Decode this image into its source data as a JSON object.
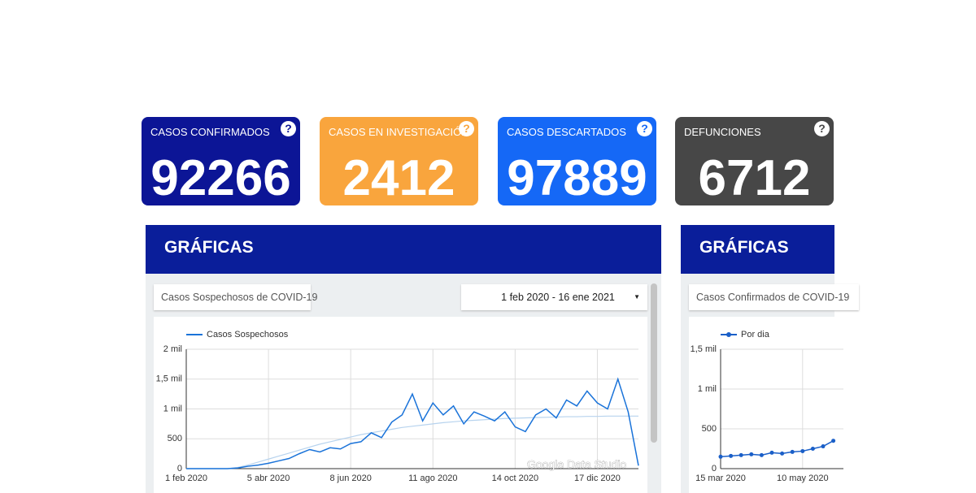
{
  "cards": [
    {
      "title": "CASOS CONFIRMADOS",
      "value": "92266",
      "color": "#0c1596"
    },
    {
      "title": "CASOS EN INVESTIGACIÓN",
      "value": "2412",
      "color": "#f9a53d"
    },
    {
      "title": "CASOS DESCARTADOS",
      "value": "97889",
      "color": "#1568f6"
    },
    {
      "title": "DEFUNCIONES",
      "value": "6712",
      "color": "#474747"
    }
  ],
  "panels": [
    {
      "heading": "GRÁFICAS",
      "selector": "Casos Sospechosos de COVID-19",
      "date_range": "1 feb 2020 - 16 ene 2021"
    },
    {
      "heading": "GRÁFICAS",
      "selector": "Casos Confirmados de COVID-19"
    }
  ],
  "chart_data": [
    {
      "type": "line",
      "watermark": "Google Data Studio",
      "categories": [
        "1 feb 2020",
        null,
        null,
        null,
        null,
        null,
        null,
        null,
        "5 abr 2020",
        null,
        null,
        null,
        null,
        null,
        null,
        null,
        "8 jun 2020",
        null,
        null,
        null,
        null,
        null,
        null,
        null,
        "11 ago 2020",
        null,
        null,
        null,
        null,
        null,
        null,
        null,
        "14 oct 2020",
        null,
        null,
        null,
        null,
        null,
        null,
        null,
        "17 dic 2020",
        null,
        null,
        null,
        null
      ],
      "series": [
        {
          "name": "Casos Sospechosos",
          "color": "#1a73d9",
          "values": [
            0,
            0,
            0,
            0,
            0,
            10,
            40,
            60,
            90,
            130,
            170,
            250,
            320,
            280,
            350,
            330,
            420,
            450,
            600,
            520,
            780,
            900,
            1250,
            800,
            1100,
            900,
            1050,
            750,
            950,
            880,
            800,
            950,
            700,
            620,
            900,
            1000,
            850,
            1150,
            1050,
            1300,
            1100,
            1000,
            1500,
            950,
            50
          ]
        },
        {
          "color": "#b7d3ee",
          "values": [
            0,
            0,
            0,
            0,
            0,
            20,
            60,
            110,
            160,
            210,
            260,
            310,
            360,
            410,
            450,
            490,
            530,
            570,
            600,
            630,
            660,
            690,
            710,
            730,
            750,
            770,
            785,
            800,
            810,
            820,
            830,
            840,
            845,
            850,
            855,
            860,
            865,
            870,
            870,
            875,
            875,
            880,
            880,
            880,
            880
          ]
        }
      ],
      "ylim": [
        0,
        2000
      ],
      "yticks": [
        0,
        500,
        {
          "value": 1000,
          "label": "1 mil"
        },
        {
          "value": 1500,
          "label": "1,5 mil"
        },
        {
          "value": 2000,
          "label": "2 mil"
        }
      ],
      "grid": true
    },
    {
      "type": "line",
      "markers": true,
      "categories": [
        "15 mar 2020",
        null,
        null,
        null,
        null,
        null,
        null,
        null,
        "10 may 2020",
        null,
        null,
        null
      ],
      "series": [
        {
          "name": "Por dia",
          "color": "#1a5fc8",
          "values": [
            150,
            160,
            170,
            180,
            170,
            200,
            190,
            210,
            220,
            250,
            280,
            350
          ]
        }
      ],
      "ylim": [
        0,
        1500
      ],
      "yticks": [
        0,
        500,
        {
          "value": 1000,
          "label": "1 mil"
        },
        {
          "value": 1500,
          "label": "1,5 mil"
        }
      ],
      "grid": true
    }
  ]
}
